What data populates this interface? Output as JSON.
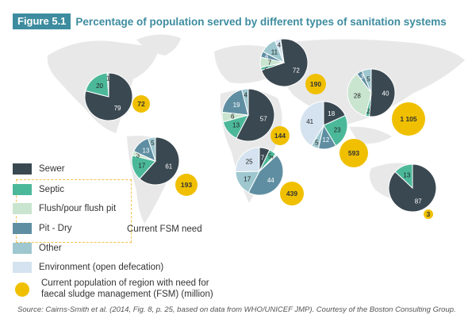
{
  "figure": {
    "label": "Figure 5.1",
    "title": "Percentage of population served by different types of sanitation systems",
    "source": "Source: Cairns-Smith et al. (2014, Fig. 8, p. 25, based on data from WHO/UNICEF JMP). Courtesy of the Boston Consulting Group."
  },
  "legend": {
    "items": [
      {
        "key": "sewer",
        "label": "Sewer",
        "color": "#3a4851"
      },
      {
        "key": "septic",
        "label": "Septic",
        "color": "#4cb89a"
      },
      {
        "key": "flush",
        "label": "Flush/pour flush pit",
        "color": "#c9e4cf"
      },
      {
        "key": "pit",
        "label": "Pit - Dry",
        "color": "#5f8ea2"
      },
      {
        "key": "other",
        "label": "Other",
        "color": "#9ec7cf"
      },
      {
        "key": "environment",
        "label": "Environment (open defecation)",
        "color": "#d4e3ef"
      }
    ],
    "fsm_group_label": "Current FSM need",
    "bubble_label_line1": "Current population of region with need for",
    "bubble_label_line2": "faecal sludge management (FSM) (million)",
    "bubble_color": "#f0c000"
  },
  "chart_data": {
    "type": "pie",
    "series_order": [
      "sewer",
      "septic",
      "flush",
      "pit",
      "other",
      "environment"
    ],
    "regions": [
      {
        "values": {
          "sewer": 79,
          "septic": 20,
          "flush": 0,
          "pit": 0,
          "other": 1,
          "environment": 0
        },
        "fsm_million": 72
      },
      {
        "values": {
          "sewer": 72,
          "septic": 2,
          "flush": 7,
          "pit": 4,
          "other": 11,
          "environment": 4
        },
        "fsm_million": 190
      },
      {
        "values": {
          "sewer": 40,
          "septic": 2,
          "flush": 28,
          "pit": 3,
          "other": 5,
          "environment": 0
        },
        "fsm_million": 1105
      },
      {
        "values": {
          "sewer": 57,
          "septic": 13,
          "flush": 6,
          "pit": 19,
          "other": 4,
          "environment": 0
        },
        "fsm_million": 144
      },
      {
        "values": {
          "sewer": 18,
          "septic": 23,
          "flush": 0,
          "pit": 12,
          "other": 5,
          "environment": 41
        },
        "fsm_million": 593
      },
      {
        "values": {
          "sewer": 61,
          "septic": 17,
          "flush": 3,
          "pit": 13,
          "other": 5,
          "environment": 0
        },
        "fsm_million": 193
      },
      {
        "values": {
          "sewer": 7,
          "septic": 5,
          "flush": 1,
          "pit": 44,
          "other": 17,
          "environment": 25
        },
        "fsm_million": 439
      },
      {
        "values": {
          "sewer": 87,
          "septic": 13,
          "flush": 0,
          "pit": 0,
          "other": 0,
          "environment": 0
        },
        "fsm_million": 3
      }
    ]
  }
}
